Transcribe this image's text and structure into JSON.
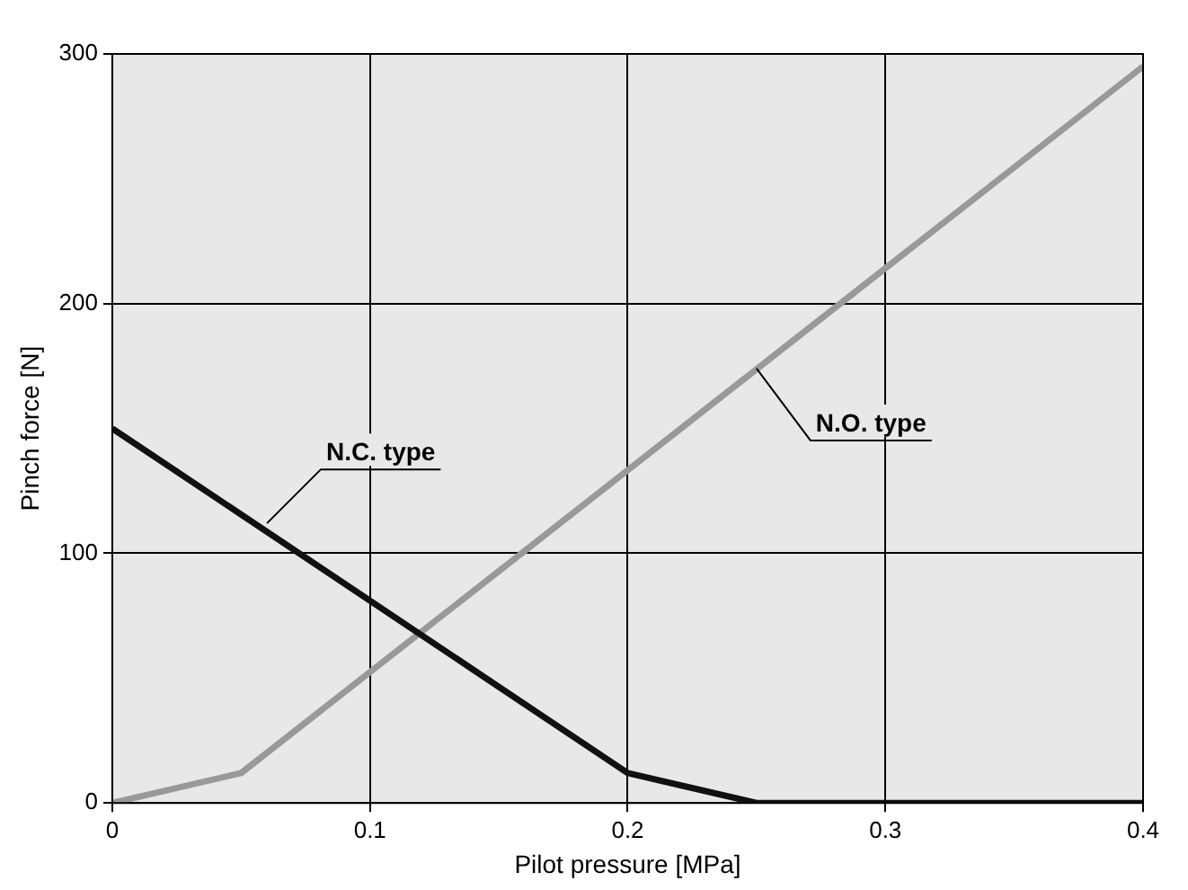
{
  "chart_data": {
    "type": "line",
    "xlabel": "Pilot pressure [MPa]",
    "ylabel": "Pinch force [N]",
    "xlim": [
      0,
      0.4
    ],
    "xticks": [
      0,
      0.1,
      0.2,
      0.3,
      0.4
    ],
    "ylim": [
      0,
      300
    ],
    "yticks": [
      0,
      100,
      200,
      300
    ],
    "grid": true,
    "legend": false,
    "marker": "none",
    "line_style": "solid",
    "series": [
      {
        "color": "#111111",
        "x": [
          0,
          0.2,
          0.25,
          0.4
        ],
        "values": [
          150,
          12,
          0,
          0
        ]
      },
      {
        "color": "#999999",
        "x": [
          0,
          0.05,
          0.4
        ],
        "values": [
          0,
          12,
          295
        ]
      }
    ],
    "annotations": [
      {
        "text": "N.C. type",
        "x": 0.06,
        "y": 112
      },
      {
        "text": "N.O. type",
        "x": 0.25,
        "y": 174
      }
    ]
  }
}
